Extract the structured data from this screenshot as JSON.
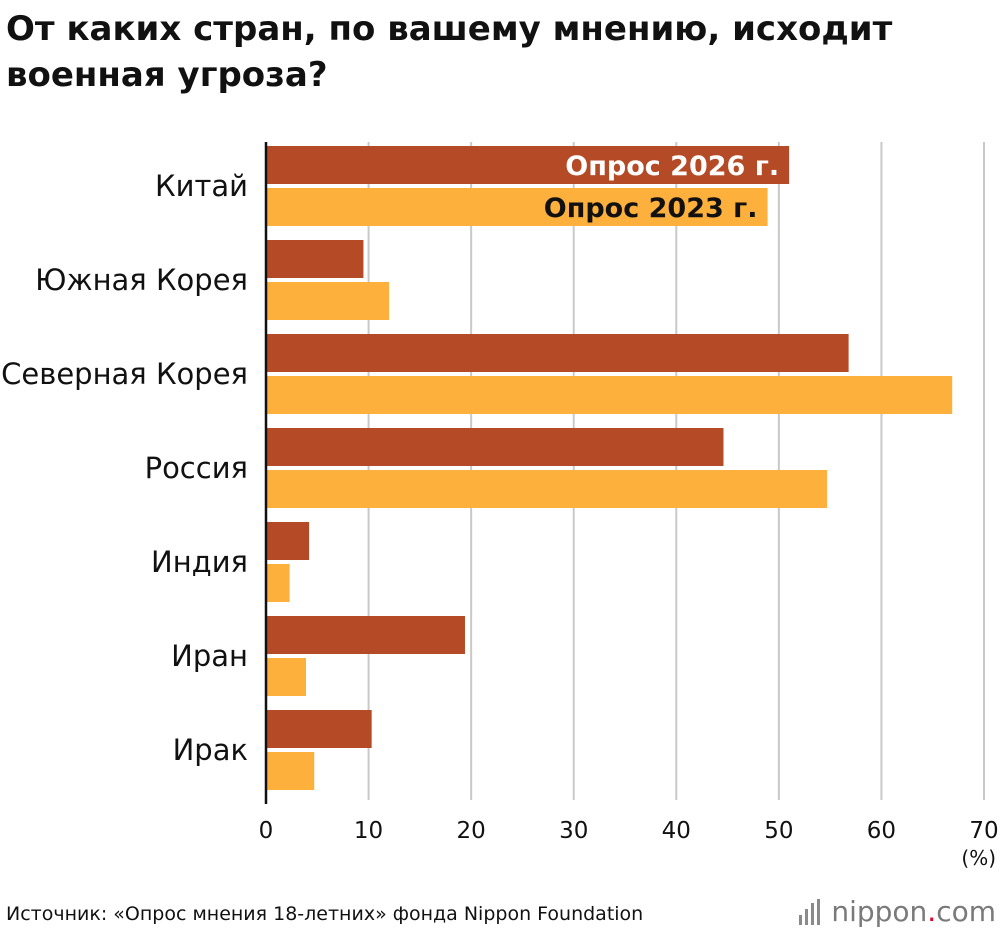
{
  "title": "От каких стран, по вашему мнению, исходит военная угроза?",
  "source": "Источник: «Опрос мнения 18-летних» фонда Nippon Foundation",
  "logo": {
    "name": "nippon",
    "dot": ".",
    "suffix": "com"
  },
  "colors": {
    "series_2026": "#b54a26",
    "series_2023": "#fdb03b",
    "grid": "#c9c9c9",
    "axis": "#111111"
  },
  "chart_data": {
    "type": "bar",
    "orientation": "horizontal",
    "categories": [
      "Китай",
      "Южная Корея",
      "Северная Корея",
      "Россия",
      "Индия",
      "Иран",
      "Ирак"
    ],
    "series": [
      {
        "name": "Опрос 2026 г.",
        "values": [
          51.0,
          9.5,
          56.8,
          44.6,
          4.2,
          19.4,
          10.3
        ]
      },
      {
        "name": "Опрос 2023 г.",
        "values": [
          48.9,
          12.0,
          66.9,
          54.7,
          2.3,
          3.9,
          4.7
        ]
      }
    ],
    "xlim": [
      0,
      70
    ],
    "xticks": [
      "0",
      "10",
      "20",
      "30",
      "40",
      "50",
      "60",
      "70"
    ],
    "xunit": "(%)",
    "grid": true,
    "legend": "inside-first-category-bars"
  }
}
